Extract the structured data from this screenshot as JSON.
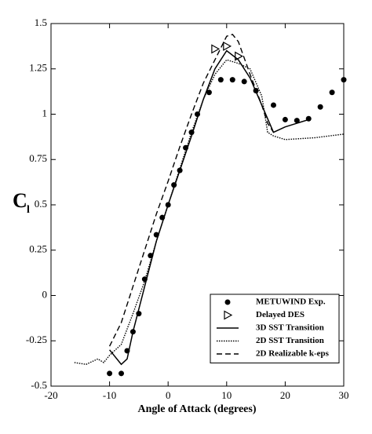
{
  "chart_data": {
    "type": "line",
    "x_label": "Angle of Attack (degrees)",
    "y_label": "C",
    "y_label_subscript": "l",
    "xlim": [
      -20,
      30
    ],
    "xticks": [
      -20,
      -10,
      0,
      10,
      20,
      30
    ],
    "ylim": [
      -0.5,
      1.5
    ],
    "yticks": [
      -0.5,
      -0.25,
      0,
      0.25,
      0.5,
      0.75,
      1,
      1.25,
      1.5
    ],
    "legend": "lower right",
    "series": [
      {
        "name": "METUWIND Exp.",
        "color": "#000000",
        "mark": "circle",
        "x": [
          -10,
          -8,
          -7,
          -6,
          -5,
          -4,
          -3,
          -2,
          -1,
          0,
          1,
          2,
          3,
          4,
          5,
          7,
          9,
          11,
          13,
          15,
          18,
          20,
          22,
          24,
          26,
          28,
          30
        ],
        "values": [
          -0.43,
          -0.43,
          -0.305,
          -0.2,
          -0.1,
          0.09,
          0.22,
          0.335,
          0.43,
          0.5,
          0.61,
          0.69,
          0.815,
          0.9,
          1.0,
          1.12,
          1.19,
          1.19,
          1.18,
          1.13,
          1.05,
          0.97,
          0.965,
          0.975,
          1.04,
          1.12,
          1.19
        ]
      },
      {
        "name": "Delayed DES",
        "color": "#000000",
        "mark": "triangle",
        "x": [
          8,
          10,
          12
        ],
        "values": [
          1.36,
          1.375,
          1.32
        ]
      },
      {
        "name": "3D SST Transition",
        "color": "#000000",
        "line": "solid",
        "x": [
          -10,
          -8,
          -7,
          -6,
          -4,
          -2,
          0,
          2,
          4,
          6,
          8,
          10,
          12,
          14,
          16,
          18,
          20,
          22,
          24
        ],
        "values": [
          -0.3,
          -0.38,
          -0.35,
          -0.2,
          0.05,
          0.3,
          0.5,
          0.69,
          0.88,
          1.08,
          1.25,
          1.35,
          1.3,
          1.2,
          1.05,
          0.9,
          0.93,
          0.95,
          0.97
        ]
      },
      {
        "name": "2D SST Transition",
        "color": "#000000",
        "line": "dotted",
        "x": [
          -16,
          -14,
          -12,
          -11,
          -10,
          -9,
          -8,
          -6,
          -4,
          -2,
          0,
          2,
          4,
          6,
          8,
          10,
          12,
          14,
          16,
          17,
          18,
          20,
          25,
          30
        ],
        "values": [
          -0.37,
          -0.38,
          -0.35,
          -0.37,
          -0.33,
          -0.3,
          -0.27,
          -0.1,
          0.08,
          0.3,
          0.5,
          0.7,
          0.9,
          1.08,
          1.22,
          1.3,
          1.28,
          1.25,
          1.1,
          0.9,
          0.88,
          0.86,
          0.87,
          0.89
        ]
      },
      {
        "name": "2D Realizable k-eps",
        "color": "#000000",
        "line": "dashed",
        "x": [
          -10,
          -8,
          -6,
          -4,
          -2,
          0,
          2,
          4,
          6,
          8,
          10,
          11,
          12,
          14,
          16,
          17,
          18
        ],
        "values": [
          -0.28,
          -0.15,
          0.05,
          0.25,
          0.45,
          0.63,
          0.82,
          1.0,
          1.17,
          1.3,
          1.43,
          1.44,
          1.4,
          1.22,
          1.05,
          0.95,
          0.9
        ]
      }
    ]
  }
}
